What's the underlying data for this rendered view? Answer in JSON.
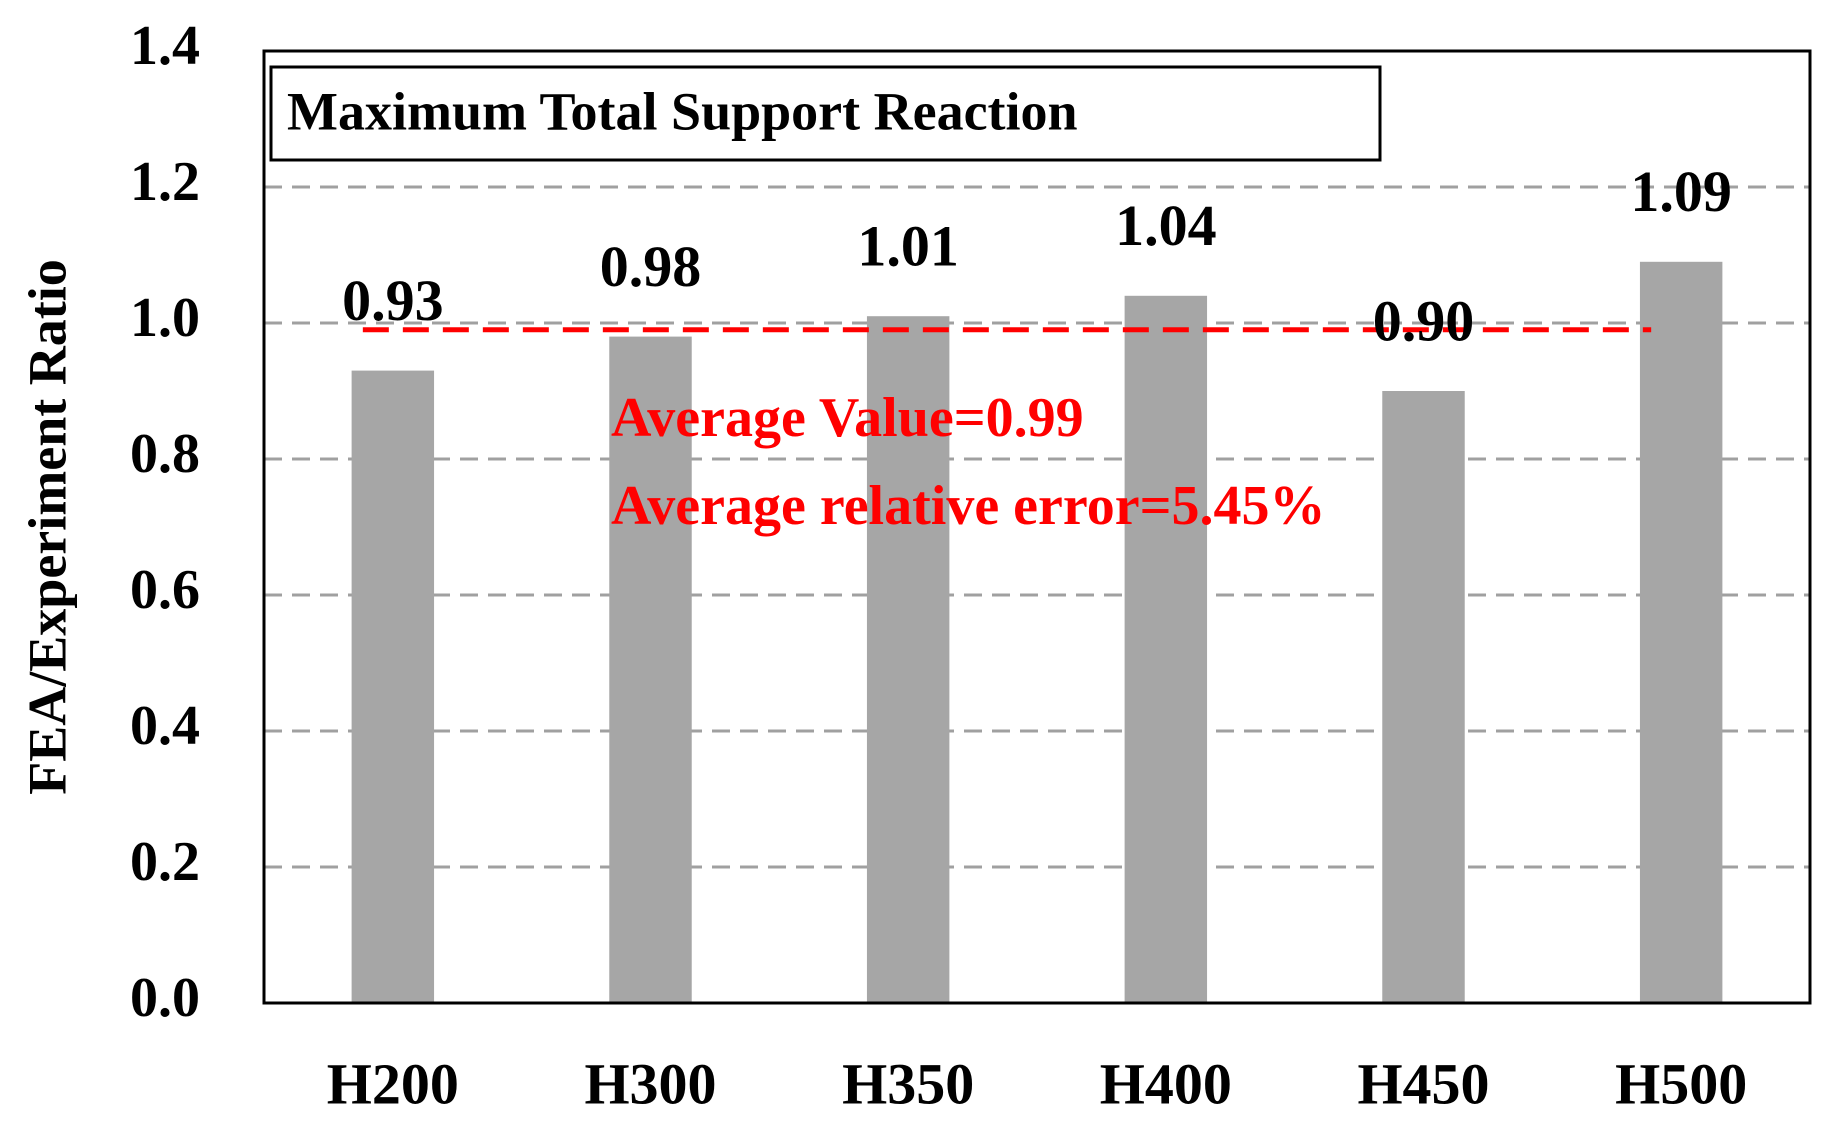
{
  "chart_data": {
    "type": "bar",
    "title": "Maximum Total Support Reaction",
    "y_label": "FEA/Experiment Ratio",
    "categories": [
      "H200",
      "H300",
      "H350",
      "H400",
      "H450",
      "H500"
    ],
    "values": [
      0.93,
      0.98,
      1.01,
      1.04,
      0.9,
      1.09
    ],
    "value_labels": [
      "0.93",
      "0.98",
      "1.01",
      "1.04",
      "0.90",
      "1.09"
    ],
    "color": "#a6a6a6",
    "ylim": [
      0,
      1.4
    ],
    "yticks": [
      {
        "value": 0,
        "label": "0.0"
      },
      0.2,
      0.4,
      0.6,
      0.8,
      {
        "value": 1,
        "label": "1.0"
      },
      1.2,
      1.4
    ],
    "grid": true,
    "average": 0.99,
    "average_color": "#ff0000",
    "annotations": [
      "Average Value=0.99",
      "Average relative error=5.45%"
    ]
  }
}
